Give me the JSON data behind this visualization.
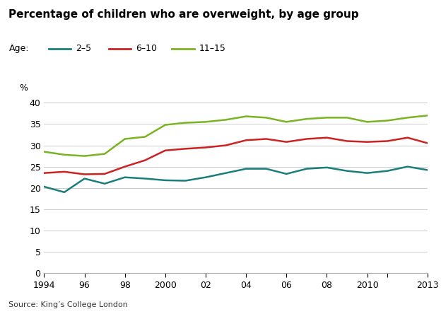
{
  "title": "Percentage of children who are overweight, by age group",
  "legend_label": "Age:",
  "series": {
    "2-5": {
      "label": "2–5",
      "color": "#1a7f7a",
      "years": [
        1994,
        1995,
        1996,
        1997,
        1998,
        1999,
        2000,
        2001,
        2002,
        2003,
        2004,
        2005,
        2006,
        2007,
        2008,
        2009,
        2010,
        2011,
        2012,
        2013
      ],
      "values": [
        20.3,
        19.0,
        22.2,
        21.0,
        22.5,
        22.2,
        21.8,
        21.7,
        22.5,
        23.5,
        24.5,
        24.5,
        23.3,
        24.5,
        24.8,
        24.0,
        23.5,
        24.0,
        25.0,
        24.2
      ]
    },
    "6-10": {
      "label": "6–10",
      "color": "#cc2222",
      "years": [
        1994,
        1995,
        1996,
        1997,
        1998,
        1999,
        2000,
        2001,
        2002,
        2003,
        2004,
        2005,
        2006,
        2007,
        2008,
        2009,
        2010,
        2011,
        2012,
        2013
      ],
      "values": [
        23.5,
        23.8,
        23.2,
        23.3,
        25.0,
        26.5,
        28.8,
        29.2,
        29.5,
        30.0,
        31.2,
        31.5,
        30.8,
        31.5,
        31.8,
        31.0,
        30.8,
        31.0,
        31.8,
        30.5
      ]
    },
    "11-15": {
      "label": "11–15",
      "color": "#7ab422",
      "years": [
        1994,
        1995,
        1996,
        1997,
        1998,
        1999,
        2000,
        2001,
        2002,
        2003,
        2004,
        2005,
        2006,
        2007,
        2008,
        2009,
        2010,
        2011,
        2012,
        2013
      ],
      "values": [
        28.5,
        27.8,
        27.5,
        28.0,
        31.5,
        32.0,
        34.8,
        35.3,
        35.5,
        36.0,
        36.8,
        36.5,
        35.5,
        36.2,
        36.5,
        36.5,
        35.5,
        35.8,
        36.5,
        37.0
      ]
    }
  },
  "ylabel": "%",
  "ylim": [
    0,
    42
  ],
  "yticks": [
    0,
    5,
    10,
    15,
    20,
    25,
    30,
    35,
    40
  ],
  "xtick_labels": [
    "1994",
    "96",
    "98",
    "2000",
    "02",
    "04",
    "06",
    "08",
    "2010",
    "",
    "2013"
  ],
  "xtick_positions": [
    1994,
    1996,
    1998,
    2000,
    2002,
    2004,
    2006,
    2008,
    2010,
    2011,
    2013
  ],
  "source": "Source: King’s College London",
  "background_color": "#ffffff",
  "grid_color": "#cccccc",
  "linewidth": 1.8,
  "title_fontsize": 11,
  "legend_fontsize": 9,
  "tick_fontsize": 9,
  "source_fontsize": 8
}
